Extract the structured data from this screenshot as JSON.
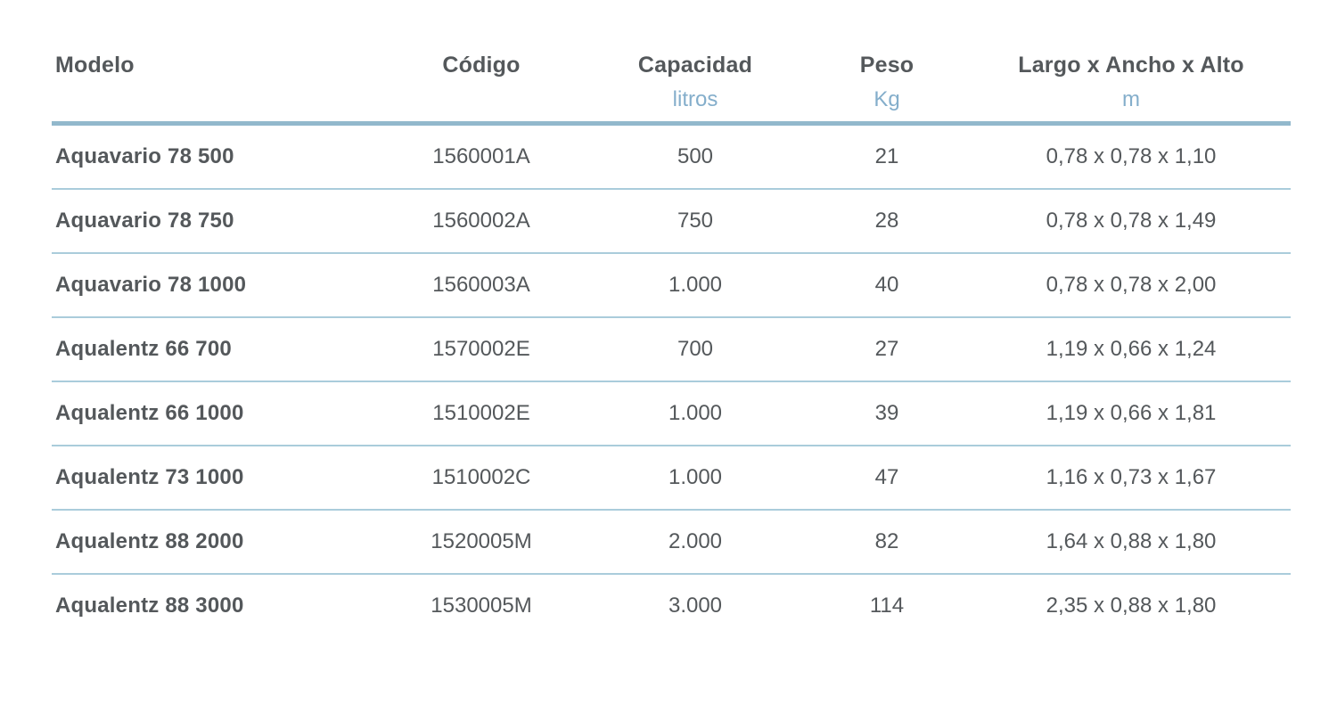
{
  "colors": {
    "accent_rule": "#92b8cc",
    "row_divider": "#aaccdb",
    "unit_text": "#84aecb",
    "body_text": "#54585b",
    "page_background": "#ffffff"
  },
  "table": {
    "columns": {
      "modelo": {
        "label": "Modelo",
        "unit": ""
      },
      "codigo": {
        "label": "Código",
        "unit": ""
      },
      "capacidad": {
        "label": "Capacidad",
        "unit": "litros"
      },
      "peso": {
        "label": "Peso",
        "unit": "Kg"
      },
      "dimensiones": {
        "label": "Largo x Ancho x Alto",
        "unit": "m"
      }
    },
    "rows": [
      {
        "modelo": "Aquavario 78 500",
        "codigo": "1560001A",
        "capacidad": "500",
        "peso": "21",
        "dimensiones": "0,78 x 0,78 x 1,10"
      },
      {
        "modelo": "Aquavario 78 750",
        "codigo": "1560002A",
        "capacidad": "750",
        "peso": "28",
        "dimensiones": "0,78 x 0,78 x 1,49"
      },
      {
        "modelo": "Aquavario 78 1000",
        "codigo": "1560003A",
        "capacidad": "1.000",
        "peso": "40",
        "dimensiones": "0,78 x 0,78 x 2,00"
      },
      {
        "modelo": "Aqualentz 66 700",
        "codigo": "1570002E",
        "capacidad": "700",
        "peso": "27",
        "dimensiones": "1,19 x 0,66 x 1,24"
      },
      {
        "modelo": "Aqualentz 66 1000",
        "codigo": "1510002E",
        "capacidad": "1.000",
        "peso": "39",
        "dimensiones": "1,19 x 0,66 x 1,81"
      },
      {
        "modelo": "Aqualentz 73 1000",
        "codigo": "1510002C",
        "capacidad": "1.000",
        "peso": "47",
        "dimensiones": "1,16 x 0,73 x 1,67"
      },
      {
        "modelo": "Aqualentz 88 2000",
        "codigo": "1520005M",
        "capacidad": "2.000",
        "peso": "82",
        "dimensiones": "1,64 x 0,88 x 1,80"
      },
      {
        "modelo": "Aqualentz 88 3000",
        "codigo": "1530005M",
        "capacidad": "3.000",
        "peso": "114",
        "dimensiones": "2,35 x 0,88 x 1,80"
      }
    ]
  }
}
